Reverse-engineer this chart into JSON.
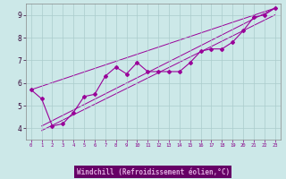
{
  "xlabel": "Windchill (Refroidissement éolien,°C)",
  "bg_color": "#cce8e8",
  "line_color": "#990099",
  "grid_color": "#aacccc",
  "xlabel_bg": "#660066",
  "xlabel_fg": "#ccaacc",
  "xlim": [
    -0.5,
    23.5
  ],
  "ylim": [
    3.5,
    9.5
  ],
  "xticks": [
    0,
    1,
    2,
    3,
    4,
    5,
    6,
    7,
    8,
    9,
    10,
    11,
    12,
    13,
    14,
    15,
    16,
    17,
    18,
    19,
    20,
    21,
    22,
    23
  ],
  "yticks": [
    4,
    5,
    6,
    7,
    8,
    9
  ],
  "data_x": [
    0,
    1,
    2,
    3,
    4,
    5,
    6,
    7,
    8,
    9,
    10,
    11,
    12,
    13,
    14,
    15,
    16,
    17,
    18,
    19,
    20,
    21,
    22,
    23
  ],
  "data_y": [
    5.7,
    5.3,
    4.1,
    4.2,
    4.7,
    5.4,
    5.5,
    6.3,
    6.7,
    6.4,
    6.9,
    6.5,
    6.5,
    6.5,
    6.5,
    6.9,
    7.4,
    7.5,
    7.5,
    7.8,
    8.3,
    8.9,
    9.0,
    9.3
  ],
  "linear_lines": [
    {
      "x0": 0,
      "y0": 5.7,
      "x1": 23,
      "y1": 9.3
    },
    {
      "x0": 1,
      "y0": 4.1,
      "x1": 23,
      "y1": 9.3
    },
    {
      "x0": 1,
      "y0": 3.9,
      "x1": 23,
      "y1": 9.0
    }
  ]
}
